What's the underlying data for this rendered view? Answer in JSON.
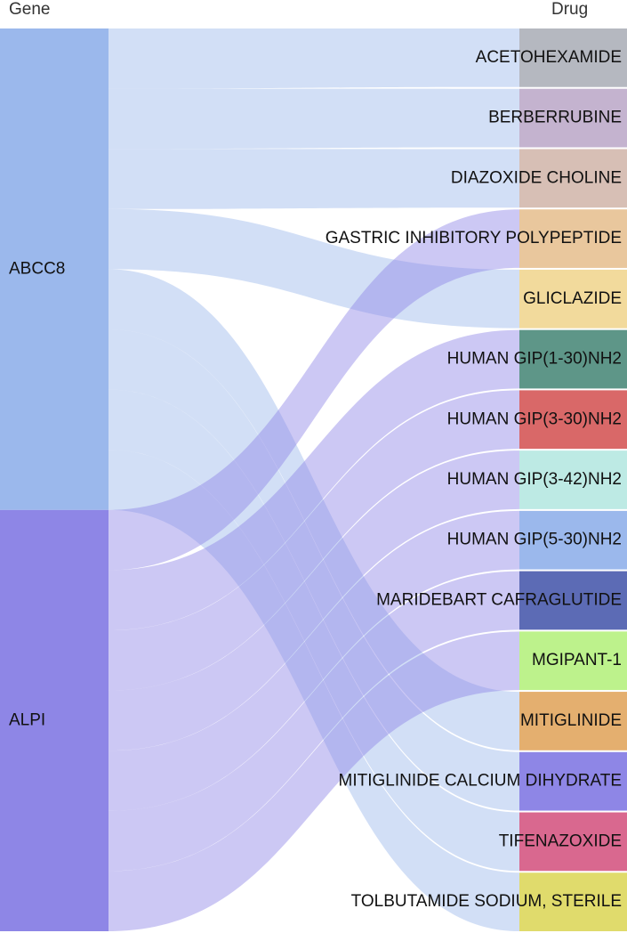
{
  "headers": {
    "left": "Gene",
    "right": "Drug"
  },
  "genes": [
    {
      "id": "ABCC8",
      "label": "ABCC8",
      "color": "#9BB8EC"
    },
    {
      "id": "ALPI",
      "label": "ALPI",
      "color": "#8E86E6"
    }
  ],
  "drugs": [
    {
      "label": "ACETOHEXAMIDE",
      "color": "#B5B8C0"
    },
    {
      "label": "BERBERRUBINE",
      "color": "#C4B3CF"
    },
    {
      "label": "DIAZOXIDE CHOLINE",
      "color": "#D7BFB5"
    },
    {
      "label": "GASTRIC INHIBITORY POLYPEPTIDE",
      "color": "#E9C79D"
    },
    {
      "label": "GLICLAZIDE",
      "color": "#F2DA9C"
    },
    {
      "label": "HUMAN GIP(1-30)NH2",
      "color": "#5E9688"
    },
    {
      "label": "HUMAN GIP(3-30)NH2",
      "color": "#D96868"
    },
    {
      "label": "HUMAN GIP(3-42)NH2",
      "color": "#BDEAE4"
    },
    {
      "label": "HUMAN GIP(5-30)NH2",
      "color": "#9BB8EC"
    },
    {
      "label": "MARIDEBART CAFRAGLUTIDE",
      "color": "#5C6BB5"
    },
    {
      "label": "MGIPANT-1",
      "color": "#BDF28C"
    },
    {
      "label": "MITIGLINIDE",
      "color": "#E4AF6F"
    },
    {
      "label": "MITIGLINIDE CALCIUM DIHYDRATE",
      "color": "#8E86E6"
    },
    {
      "label": "TIFENAZOXIDE",
      "color": "#D9688F"
    },
    {
      "label": "TOLBUTAMIDE SODIUM, STERILE",
      "color": "#E0DB6C"
    }
  ],
  "links": [
    {
      "source": "ABCC8",
      "target": "ACETOHEXAMIDE",
      "value": 1
    },
    {
      "source": "ABCC8",
      "target": "BERBERRUBINE",
      "value": 1
    },
    {
      "source": "ABCC8",
      "target": "DIAZOXIDE CHOLINE",
      "value": 1
    },
    {
      "source": "ABCC8",
      "target": "GLICLAZIDE",
      "value": 1
    },
    {
      "source": "ABCC8",
      "target": "MITIGLINIDE",
      "value": 1
    },
    {
      "source": "ABCC8",
      "target": "MITIGLINIDE CALCIUM DIHYDRATE",
      "value": 1
    },
    {
      "source": "ABCC8",
      "target": "TIFENAZOXIDE",
      "value": 1
    },
    {
      "source": "ABCC8",
      "target": "TOLBUTAMIDE SODIUM, STERILE",
      "value": 1
    },
    {
      "source": "ALPI",
      "target": "GASTRIC INHIBITORY POLYPEPTIDE",
      "value": 1
    },
    {
      "source": "ALPI",
      "target": "HUMAN GIP(1-30)NH2",
      "value": 1
    },
    {
      "source": "ALPI",
      "target": "HUMAN GIP(3-30)NH2",
      "value": 1
    },
    {
      "source": "ALPI",
      "target": "HUMAN GIP(3-42)NH2",
      "value": 1
    },
    {
      "source": "ALPI",
      "target": "HUMAN GIP(5-30)NH2",
      "value": 1
    },
    {
      "source": "ALPI",
      "target": "MARIDEBART CAFRAGLUTIDE",
      "value": 1
    },
    {
      "source": "ALPI",
      "target": "MGIPANT-1",
      "value": 1
    }
  ]
}
